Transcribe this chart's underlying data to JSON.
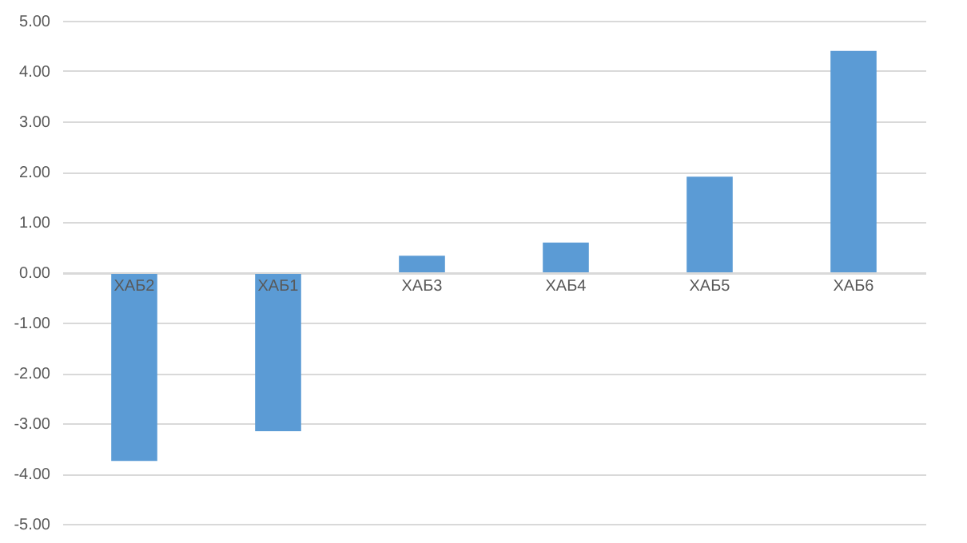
{
  "chart_data": {
    "type": "bar",
    "categories": [
      "ХАБ2",
      "ХАБ1",
      "ХАБ3",
      "ХАБ4",
      "ХАБ5",
      "ХАБ6"
    ],
    "values": [
      -3.75,
      -3.16,
      0.33,
      0.59,
      1.9,
      4.4
    ],
    "color": "#5b9bd5",
    "ylim": [
      -5,
      5
    ],
    "yticks": [
      {
        "value": -5,
        "label": "-5.00"
      },
      {
        "value": -4,
        "label": "-4.00"
      },
      {
        "value": -3,
        "label": "-3.00"
      },
      {
        "value": -2,
        "label": "-2.00"
      },
      {
        "value": -1,
        "label": "-1.00"
      },
      {
        "value": 0,
        "label": "0.00"
      },
      {
        "value": 1,
        "label": "1.00"
      },
      {
        "value": 2,
        "label": "2.00"
      },
      {
        "value": 3,
        "label": "3.00"
      },
      {
        "value": 4,
        "label": "4.00"
      },
      {
        "value": 5,
        "label": "5.00"
      }
    ],
    "grid": "y"
  }
}
